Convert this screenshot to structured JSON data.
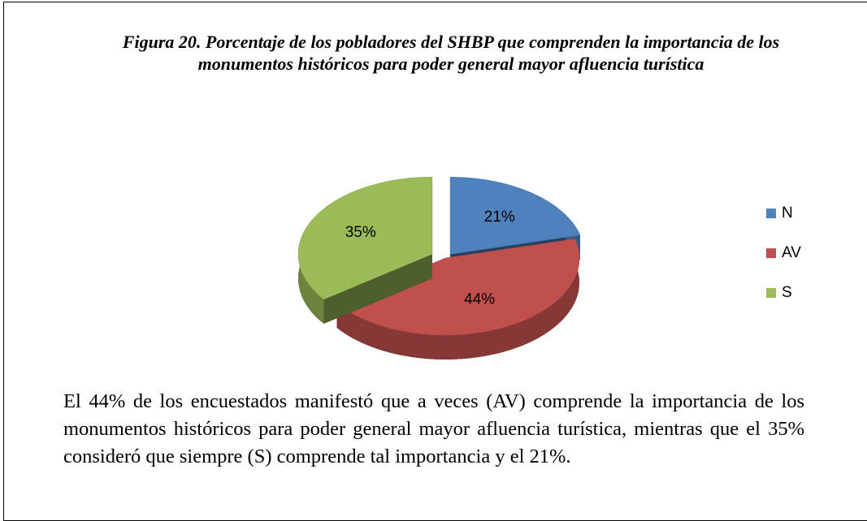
{
  "chart_data": {
    "type": "pie",
    "title": "Figura 20. Porcentaje de los pobladores del SHBP que comprenden la importancia de los monumentos históricos para poder general mayor afluencia turística",
    "categories": [
      "N",
      "AV",
      "S"
    ],
    "values": [
      21,
      44,
      35
    ],
    "value_labels": [
      "21%",
      "44%",
      "35%"
    ],
    "colors": [
      "#4f81bd",
      "#c0504d",
      "#9bbb59"
    ],
    "legend": "right",
    "description": "El 44% de los encuestados manifestó que a veces (AV) comprende la importancia de los monumentos históricos para poder general mayor afluencia turística, mientras que el 35% consideró que siempre (S) comprende tal importancia y el 21%."
  }
}
